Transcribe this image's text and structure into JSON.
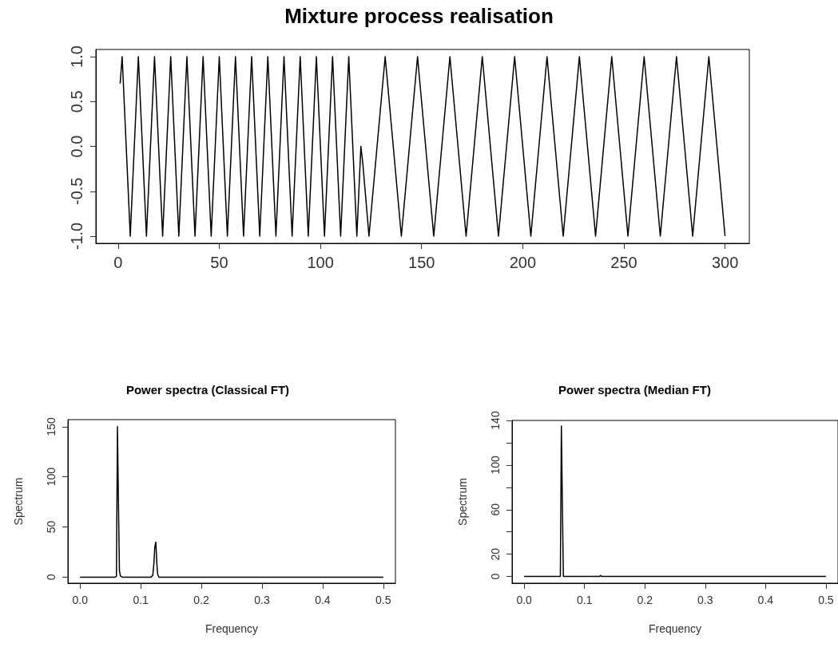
{
  "chart_data": [
    {
      "type": "line",
      "title": "Mixture process realisation",
      "xlim": [
        -11,
        312
      ],
      "ylim": [
        -1.08,
        1.08
      ],
      "xticks": [
        0,
        50,
        100,
        150,
        200,
        250,
        300
      ],
      "yticks": [
        {
          "value": -1,
          "label": "-1.0"
        },
        -0.5,
        {
          "value": 0,
          "label": "0.0"
        },
        0.5,
        {
          "value": 1,
          "label": "1.0"
        }
      ],
      "grid": false,
      "series": [
        {
          "color": "#000000",
          "x": [
            1,
            2,
            4,
            6,
            8,
            10,
            12,
            14,
            16,
            18,
            20,
            22,
            24,
            26,
            28,
            30,
            32,
            34,
            36,
            38,
            40,
            42,
            44,
            46,
            48,
            50,
            52,
            54,
            56,
            58,
            60,
            62,
            64,
            66,
            68,
            70,
            72,
            74,
            76,
            78,
            80,
            82,
            84,
            86,
            88,
            90,
            92,
            94,
            96,
            98,
            100,
            102,
            104,
            106,
            108,
            110,
            112,
            114,
            116,
            118,
            120,
            121,
            124,
            128,
            132,
            136,
            140,
            144,
            148,
            152,
            156,
            160,
            164,
            168,
            172,
            176,
            180,
            184,
            188,
            192,
            196,
            200,
            204,
            208,
            212,
            216,
            220,
            224,
            228,
            232,
            236,
            240,
            244,
            248,
            252,
            256,
            260,
            264,
            268,
            272,
            276,
            280,
            284,
            288,
            292,
            296,
            300
          ],
          "values": [
            0.7,
            1,
            0,
            -1,
            0,
            1,
            0,
            -1,
            0,
            1,
            0,
            -1,
            0,
            1,
            0,
            -1,
            0,
            1,
            0,
            -1,
            0,
            1,
            0,
            -1,
            0,
            1,
            0,
            -1,
            0,
            1,
            0,
            -1,
            0,
            1,
            0,
            -1,
            0,
            1,
            0,
            -1,
            0,
            1,
            0,
            -1,
            0,
            1,
            0,
            -1,
            0,
            1,
            0,
            -1,
            0,
            1,
            0,
            -1,
            0,
            1,
            0,
            -1,
            0,
            -0.2,
            -1,
            0,
            1,
            0,
            -1,
            0,
            1,
            0,
            -1,
            0,
            1,
            0,
            -1,
            0,
            1,
            0,
            -1,
            0,
            1,
            0,
            -1,
            0,
            1,
            0,
            -1,
            0,
            1,
            0,
            -1,
            0,
            1,
            0,
            -1,
            0,
            1,
            0,
            -1,
            0,
            1,
            0,
            -1,
            0,
            1,
            0,
            -1
          ]
        }
      ]
    },
    {
      "type": "line",
      "title": "Power spectra (Classical FT)",
      "xlabel": "Frequency",
      "ylabel": "Spectrum",
      "xlim": [
        -0.02,
        0.52
      ],
      "ylim": [
        -6,
        157
      ],
      "xticks": [
        {
          "value": 0,
          "label": "0.0"
        },
        0.1,
        0.2,
        0.3,
        0.4,
        0.5
      ],
      "yticks": [
        0,
        50,
        100,
        150
      ],
      "grid": false,
      "series": [
        {
          "color": "#000000",
          "x": [
            0,
            0.058,
            0.06,
            0.0617,
            0.0633,
            0.065,
            0.0667,
            0.07,
            0.117,
            0.12,
            0.1217,
            0.1233,
            0.125,
            0.1267,
            0.128,
            0.13,
            0.5
          ],
          "values": [
            0,
            0,
            1,
            150,
            75,
            6,
            1,
            0,
            0,
            2,
            13,
            30,
            35,
            13,
            3,
            0,
            0
          ]
        }
      ]
    },
    {
      "type": "line",
      "title": "Power spectra (Median FT)",
      "xlabel": "Frequency",
      "ylabel": "Spectrum",
      "xlim": [
        -0.02,
        0.52
      ],
      "ylim": [
        -6,
        140
      ],
      "xticks": [
        {
          "value": 0,
          "label": "0.0"
        },
        0.1,
        0.2,
        0.3,
        0.4,
        0.5
      ],
      "yticks": [
        0,
        20,
        {
          "value": 40,
          "label": null
        },
        60,
        {
          "value": 80,
          "label": null
        },
        100,
        {
          "value": 120,
          "label": null
        },
        140
      ],
      "grid": false,
      "series": [
        {
          "color": "#000000",
          "x": [
            0,
            0.06,
            0.0617,
            0.0633,
            0.065,
            0.125,
            0.1267,
            0.128,
            0.5
          ],
          "values": [
            0,
            0,
            135,
            67,
            0,
            0,
            1,
            0,
            0
          ]
        }
      ]
    }
  ]
}
